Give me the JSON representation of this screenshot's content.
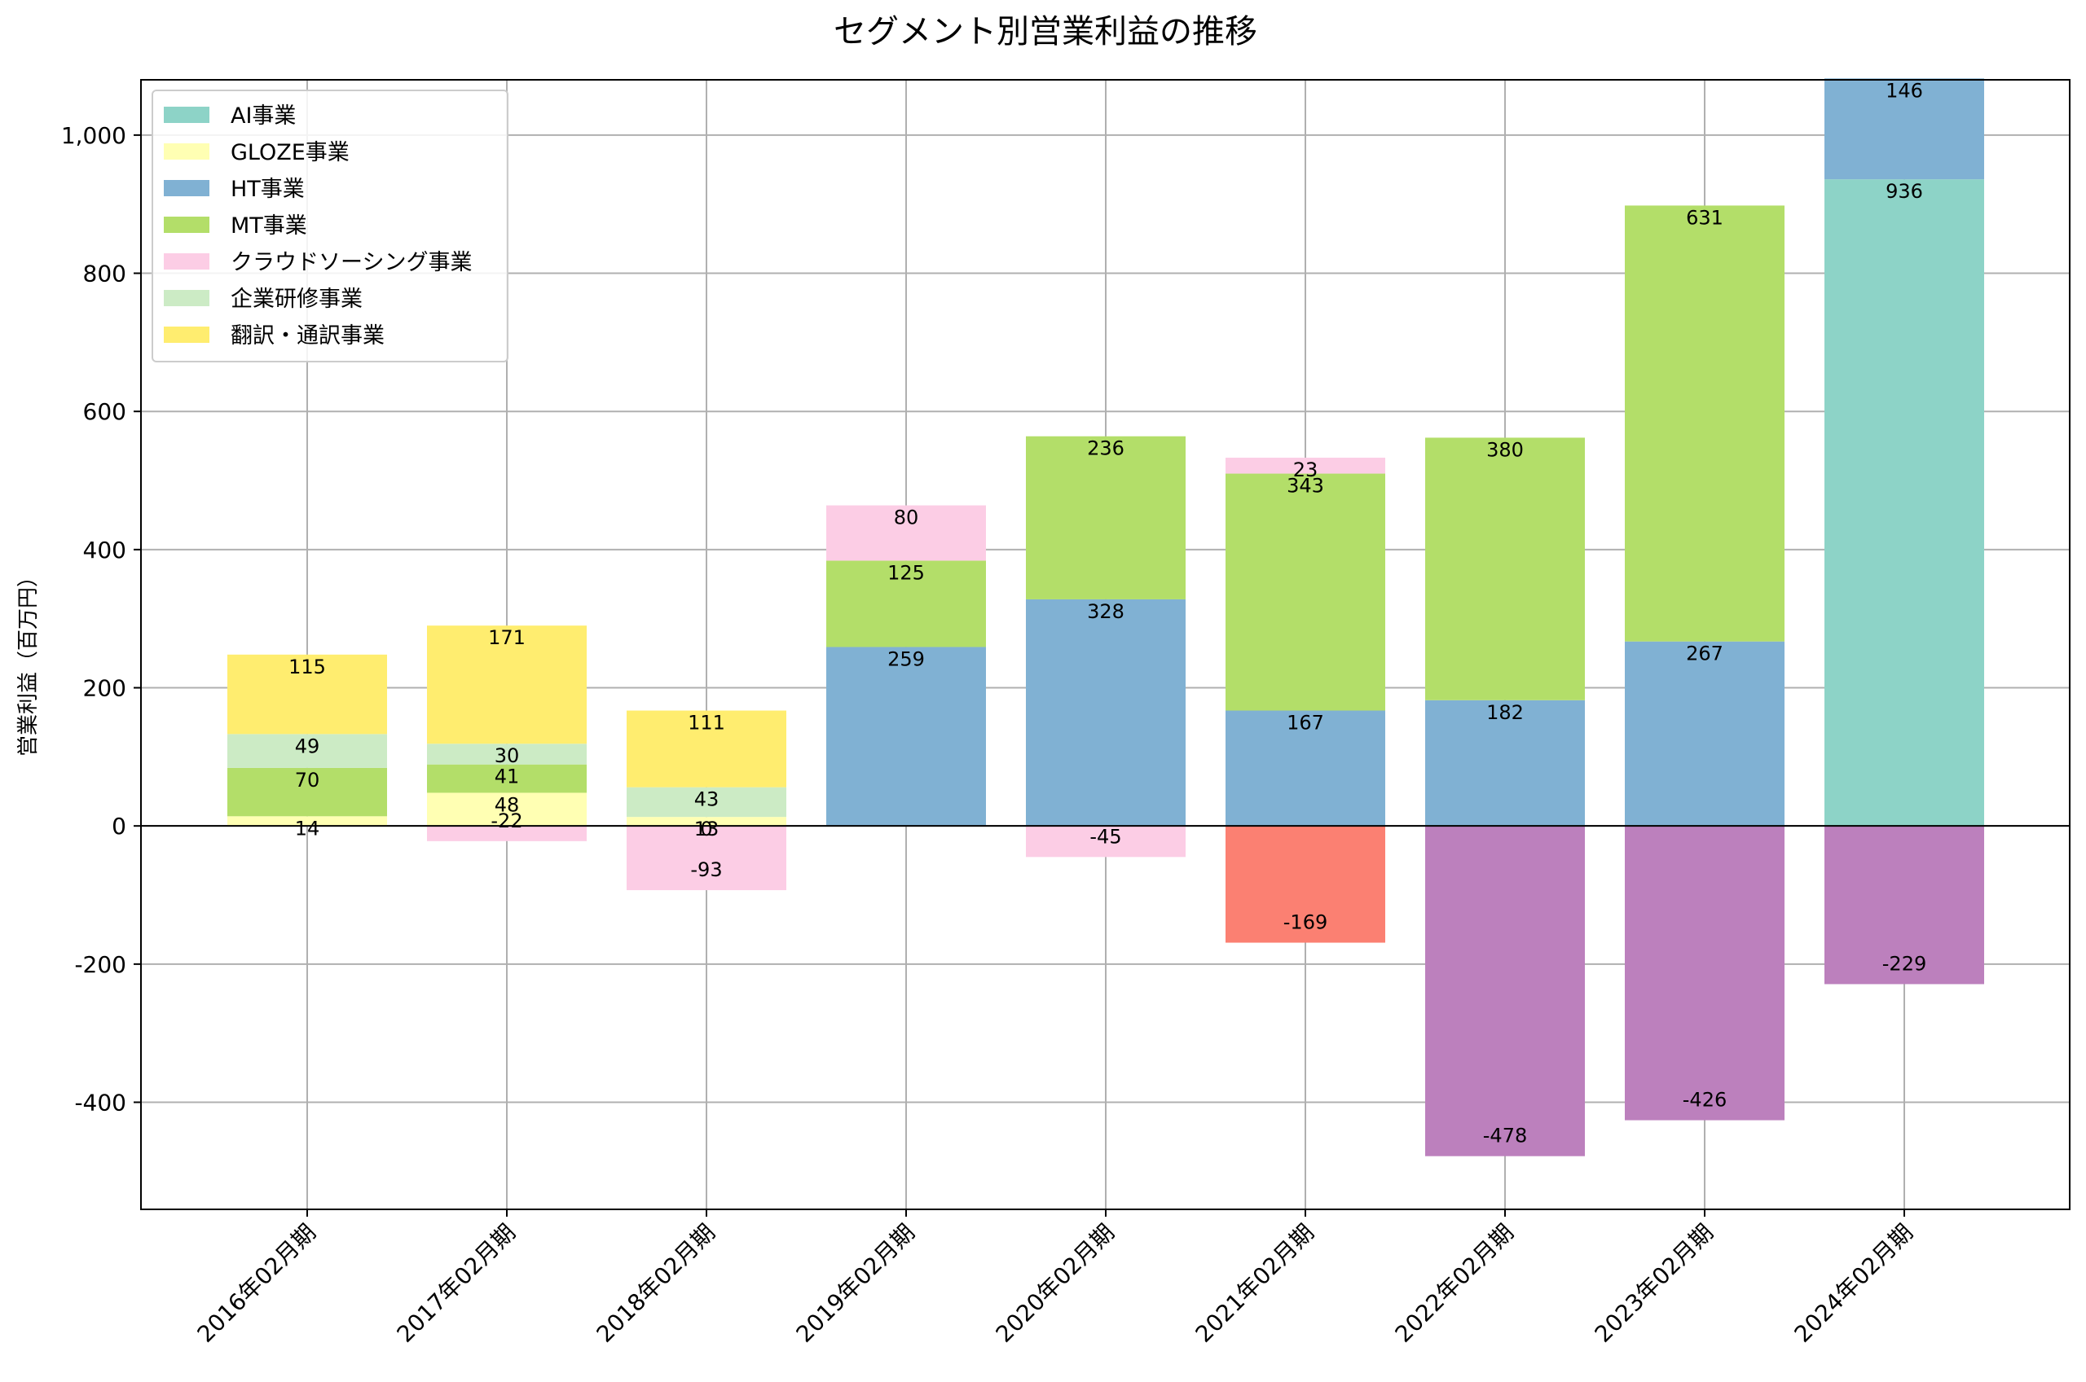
{
  "chart_data": {
    "type": "bar",
    "stacked": true,
    "title": "セグメント別営業利益の推移",
    "xlabel": "",
    "ylabel": "営業利益（百万円）",
    "ylim": [
      -555,
      1080
    ],
    "yticks": [
      -400,
      -200,
      0,
      200,
      400,
      600,
      800,
      1000
    ],
    "ytick_labels": [
      "-400",
      "-200",
      "0",
      "200",
      "400",
      "600",
      "800",
      "1,000"
    ],
    "grid": true,
    "legend_position": "upper-left",
    "categories": [
      "2016年02月期",
      "2017年02月期",
      "2018年02月期",
      "2019年02月期",
      "2020年02月期",
      "2021年02月期",
      "2022年02月期",
      "2023年02月期",
      "2024年02月期"
    ],
    "series": [
      {
        "name": "AI事業",
        "color": "#8dd3c7",
        "values": [
          null,
          null,
          null,
          null,
          null,
          null,
          null,
          null,
          936
        ]
      },
      {
        "name": "GLOZE事業",
        "color": "#ffffb3",
        "values": [
          14,
          48,
          13,
          null,
          null,
          null,
          null,
          null,
          null
        ]
      },
      {
        "name": "HT事業",
        "color": "#80b1d3",
        "values": [
          null,
          null,
          null,
          259,
          328,
          167,
          182,
          267,
          146
        ]
      },
      {
        "name": "MT事業",
        "color": "#b3de69",
        "values": [
          70,
          41,
          0,
          125,
          236,
          343,
          380,
          631,
          null
        ]
      },
      {
        "name": "クラウドソーシング事業",
        "color": "#fccde5",
        "values": [
          null,
          -22,
          -93,
          80,
          -45,
          23,
          null,
          null,
          null
        ]
      },
      {
        "name": "企業研修事業",
        "color": "#ccebc5",
        "values": [
          49,
          30,
          43,
          null,
          null,
          null,
          null,
          null,
          null
        ]
      },
      {
        "name": "翻訳・通訳事業",
        "color": "#ffed6f",
        "values": [
          115,
          171,
          111,
          null,
          null,
          null,
          null,
          null,
          null
        ]
      },
      {
        "name": "",
        "color": "#fb8072",
        "values": [
          null,
          null,
          null,
          null,
          null,
          -169,
          null,
          null,
          null
        ]
      },
      {
        "name": "",
        "color": "#bc80bd",
        "values": [
          null,
          null,
          null,
          null,
          null,
          null,
          -478,
          -426,
          -229
        ]
      }
    ]
  }
}
